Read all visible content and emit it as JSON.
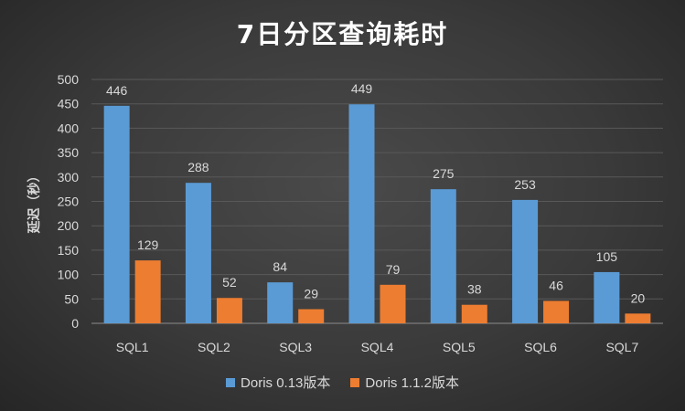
{
  "chart_data": {
    "type": "bar",
    "title": "7日分区查询耗时",
    "xlabel": "",
    "ylabel": "延迟（秒）",
    "ylim": [
      0,
      500
    ],
    "yticks": [
      0,
      50,
      100,
      150,
      200,
      250,
      300,
      350,
      400,
      450,
      500
    ],
    "grid": true,
    "legend_position": "bottom",
    "categories": [
      "SQL1",
      "SQL2",
      "SQL3",
      "SQL4",
      "SQL5",
      "SQL6",
      "SQL7"
    ],
    "series": [
      {
        "name": "Doris 0.13版本",
        "color": "#5b9bd5",
        "values": [
          446,
          288,
          84,
          449,
          275,
          253,
          105
        ]
      },
      {
        "name": "Doris 1.1.2版本",
        "color": "#ed7d31",
        "values": [
          129,
          52,
          29,
          79,
          38,
          46,
          20
        ]
      }
    ]
  }
}
